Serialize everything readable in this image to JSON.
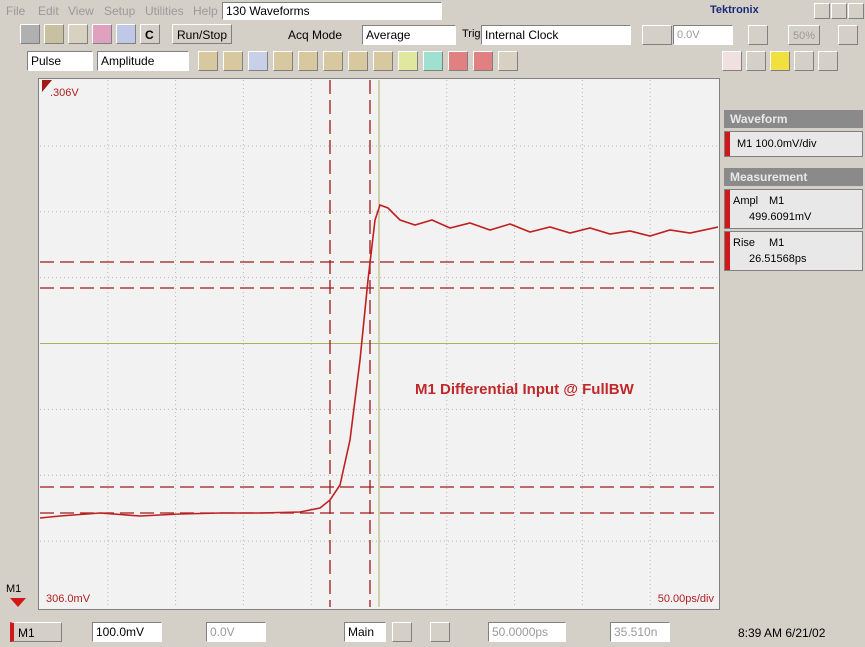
{
  "menu_bar": {
    "items": [
      "File",
      "Edit",
      "View",
      "Setup",
      "Utilities",
      "Help"
    ],
    "waveform_count": "130 Waveforms",
    "brand": "Tektronix"
  },
  "toolbar": {
    "c_button": "C",
    "run_stop": "Run/Stop",
    "acq_mode_label": "Acq Mode",
    "acq_mode": "Average",
    "trig_label": "Trig",
    "trig_source": "Internal Clock",
    "trig_level": "0.0V",
    "percent": "50%"
  },
  "measure_bar": {
    "pulse": "Pulse",
    "amplitude": "Amplitude"
  },
  "display": {
    "top_level": ".306V",
    "bottom_level": "306.0mV",
    "timebase": "50.00ps/div",
    "annotation": "M1  Differential Input @ FullBW",
    "marker": "M1"
  },
  "side_panel": {
    "waveform_header": "Waveform",
    "waveform_scale": "M1 100.0mV/div",
    "measurement_header": "Measurement",
    "measurements": [
      {
        "name": "Ampl",
        "source": "M1",
        "value": "499.6091mV"
      },
      {
        "name": "Rise",
        "source": "M1",
        "value": "26.51568ps"
      }
    ]
  },
  "status_bar": {
    "channel": "M1",
    "scale": "100.0mV",
    "offset": "0.0V",
    "timebase_mode": "Main",
    "position": "50.0000ps",
    "delay": "35.510n",
    "clock": "8:39 AM 6/21/02"
  }
}
